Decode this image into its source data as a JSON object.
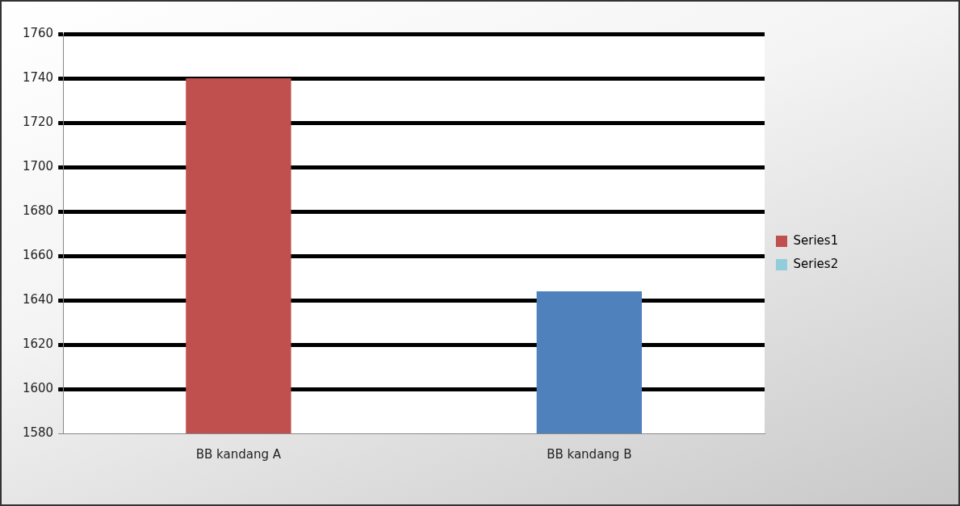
{
  "chart_data": {
    "type": "bar",
    "categories": [
      "BB kandang A",
      "BB kandang B"
    ],
    "series": [
      {
        "name": "Series1",
        "color": "#c0504d",
        "colors": [
          "#c0504d",
          "#4f81bd"
        ],
        "values": [
          1740,
          1644
        ]
      },
      {
        "name": "Series2",
        "color": "#92cddc",
        "values": [
          null,
          null
        ]
      }
    ],
    "ylim": [
      1580,
      1760
    ],
    "yticks": [
      1580,
      1600,
      1620,
      1640,
      1660,
      1680,
      1700,
      1720,
      1740,
      1760
    ],
    "grid": "y",
    "legend": "right"
  }
}
